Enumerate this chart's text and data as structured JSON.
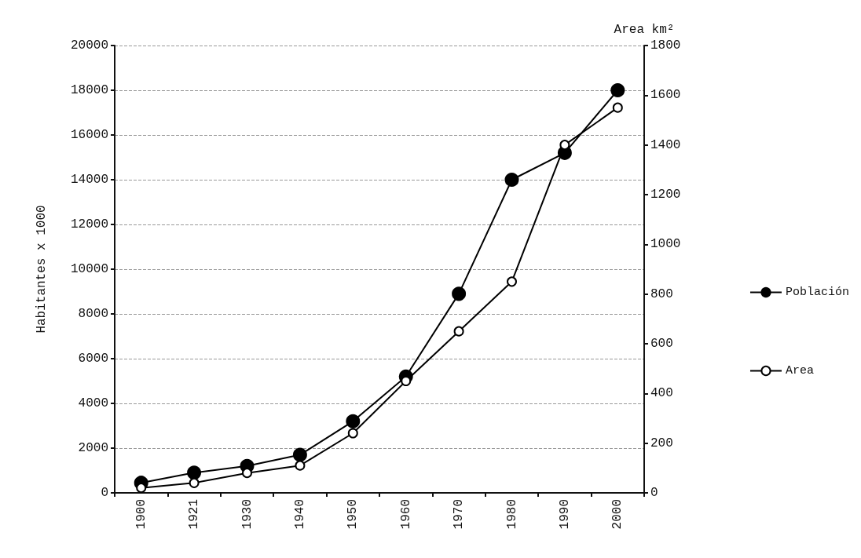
{
  "chart_data": {
    "type": "line",
    "categories": [
      "1900",
      "1921",
      "1930",
      "1940",
      "1950",
      "1960",
      "1970",
      "1980",
      "1990",
      "2000"
    ],
    "ylabel": "Habitantes x 1000",
    "y2label": "Area km²",
    "ylim": [
      0,
      20000
    ],
    "yticks": [
      0,
      2000,
      4000,
      6000,
      8000,
      10000,
      12000,
      14000,
      16000,
      18000,
      20000
    ],
    "y2lim": [
      0,
      1800
    ],
    "y2ticks": [
      0,
      200,
      400,
      600,
      800,
      1000,
      1200,
      1400,
      1600,
      1800
    ],
    "series": [
      {
        "name": "Población",
        "color": "#000000",
        "marker": "circle",
        "values": [
          450,
          900,
          1200,
          1700,
          3200,
          5200,
          8900,
          14000,
          15200,
          18000
        ]
      },
      {
        "name": "Area",
        "color": "#000000",
        "marker": "circle",
        "axis": "y2",
        "values": [
          20,
          40,
          80,
          110,
          240,
          450,
          650,
          850,
          1400,
          1550
        ]
      }
    ],
    "grid": "y",
    "legend": "right",
    "line_style": "solid"
  }
}
